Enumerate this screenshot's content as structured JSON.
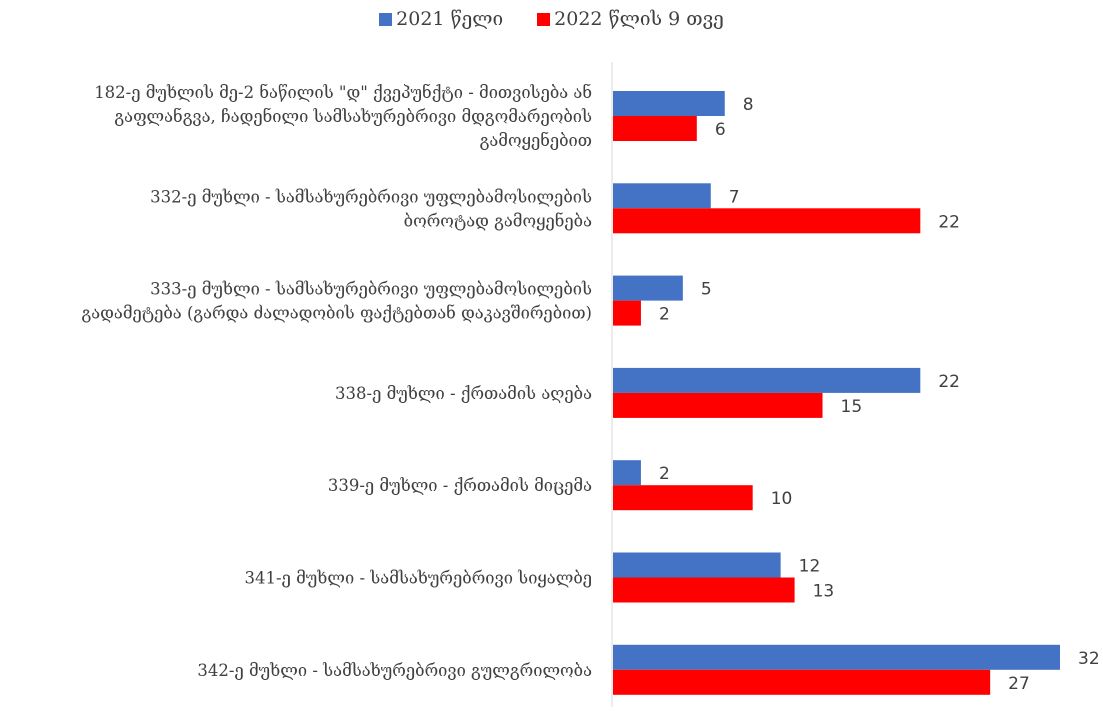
{
  "chart_data": {
    "type": "bar",
    "orientation": "horizontal",
    "title": "",
    "xlabel": "",
    "ylabel": "",
    "legend_position": "top",
    "grid": false,
    "xlim": [
      0,
      32
    ],
    "categories": [
      [
        "182-ე მუხლის მე-2 ნაწილის \"დ\" ქვეპუნქტი - მითვისება ან",
        "გაფლანგვა, ჩადენილი სამსახურებრივი მდგომარეობის",
        "გამოყენებით"
      ],
      [
        "332-ე მუხლი - სამსახურებრივი უფლებამოსილების",
        "ბოროტად გამოყენება"
      ],
      [
        "333-ე მუხლი - სამსახურებრივი უფლებამოსილების",
        "გადამეტება (გარდა ძალადობის ფაქტებთან დაკავშირებით)"
      ],
      [
        "338-ე მუხლი - ქრთამის აღება"
      ],
      [
        "339-ე მუხლი - ქრთამის მიცემა"
      ],
      [
        "341-ე მუხლი - სამსახურებრივი სიყალბე"
      ],
      [
        "342-ე მუხლი - სამსახურებრივი გულგრილობა"
      ]
    ],
    "series": [
      {
        "name": "2021 წელი",
        "color": "#4472C4",
        "values": [
          8,
          7,
          5,
          22,
          2,
          12,
          32
        ]
      },
      {
        "name": "2022 წლის 9 თვე",
        "color": "#FF0000",
        "values": [
          6,
          22,
          2,
          15,
          10,
          13,
          27
        ]
      }
    ]
  }
}
